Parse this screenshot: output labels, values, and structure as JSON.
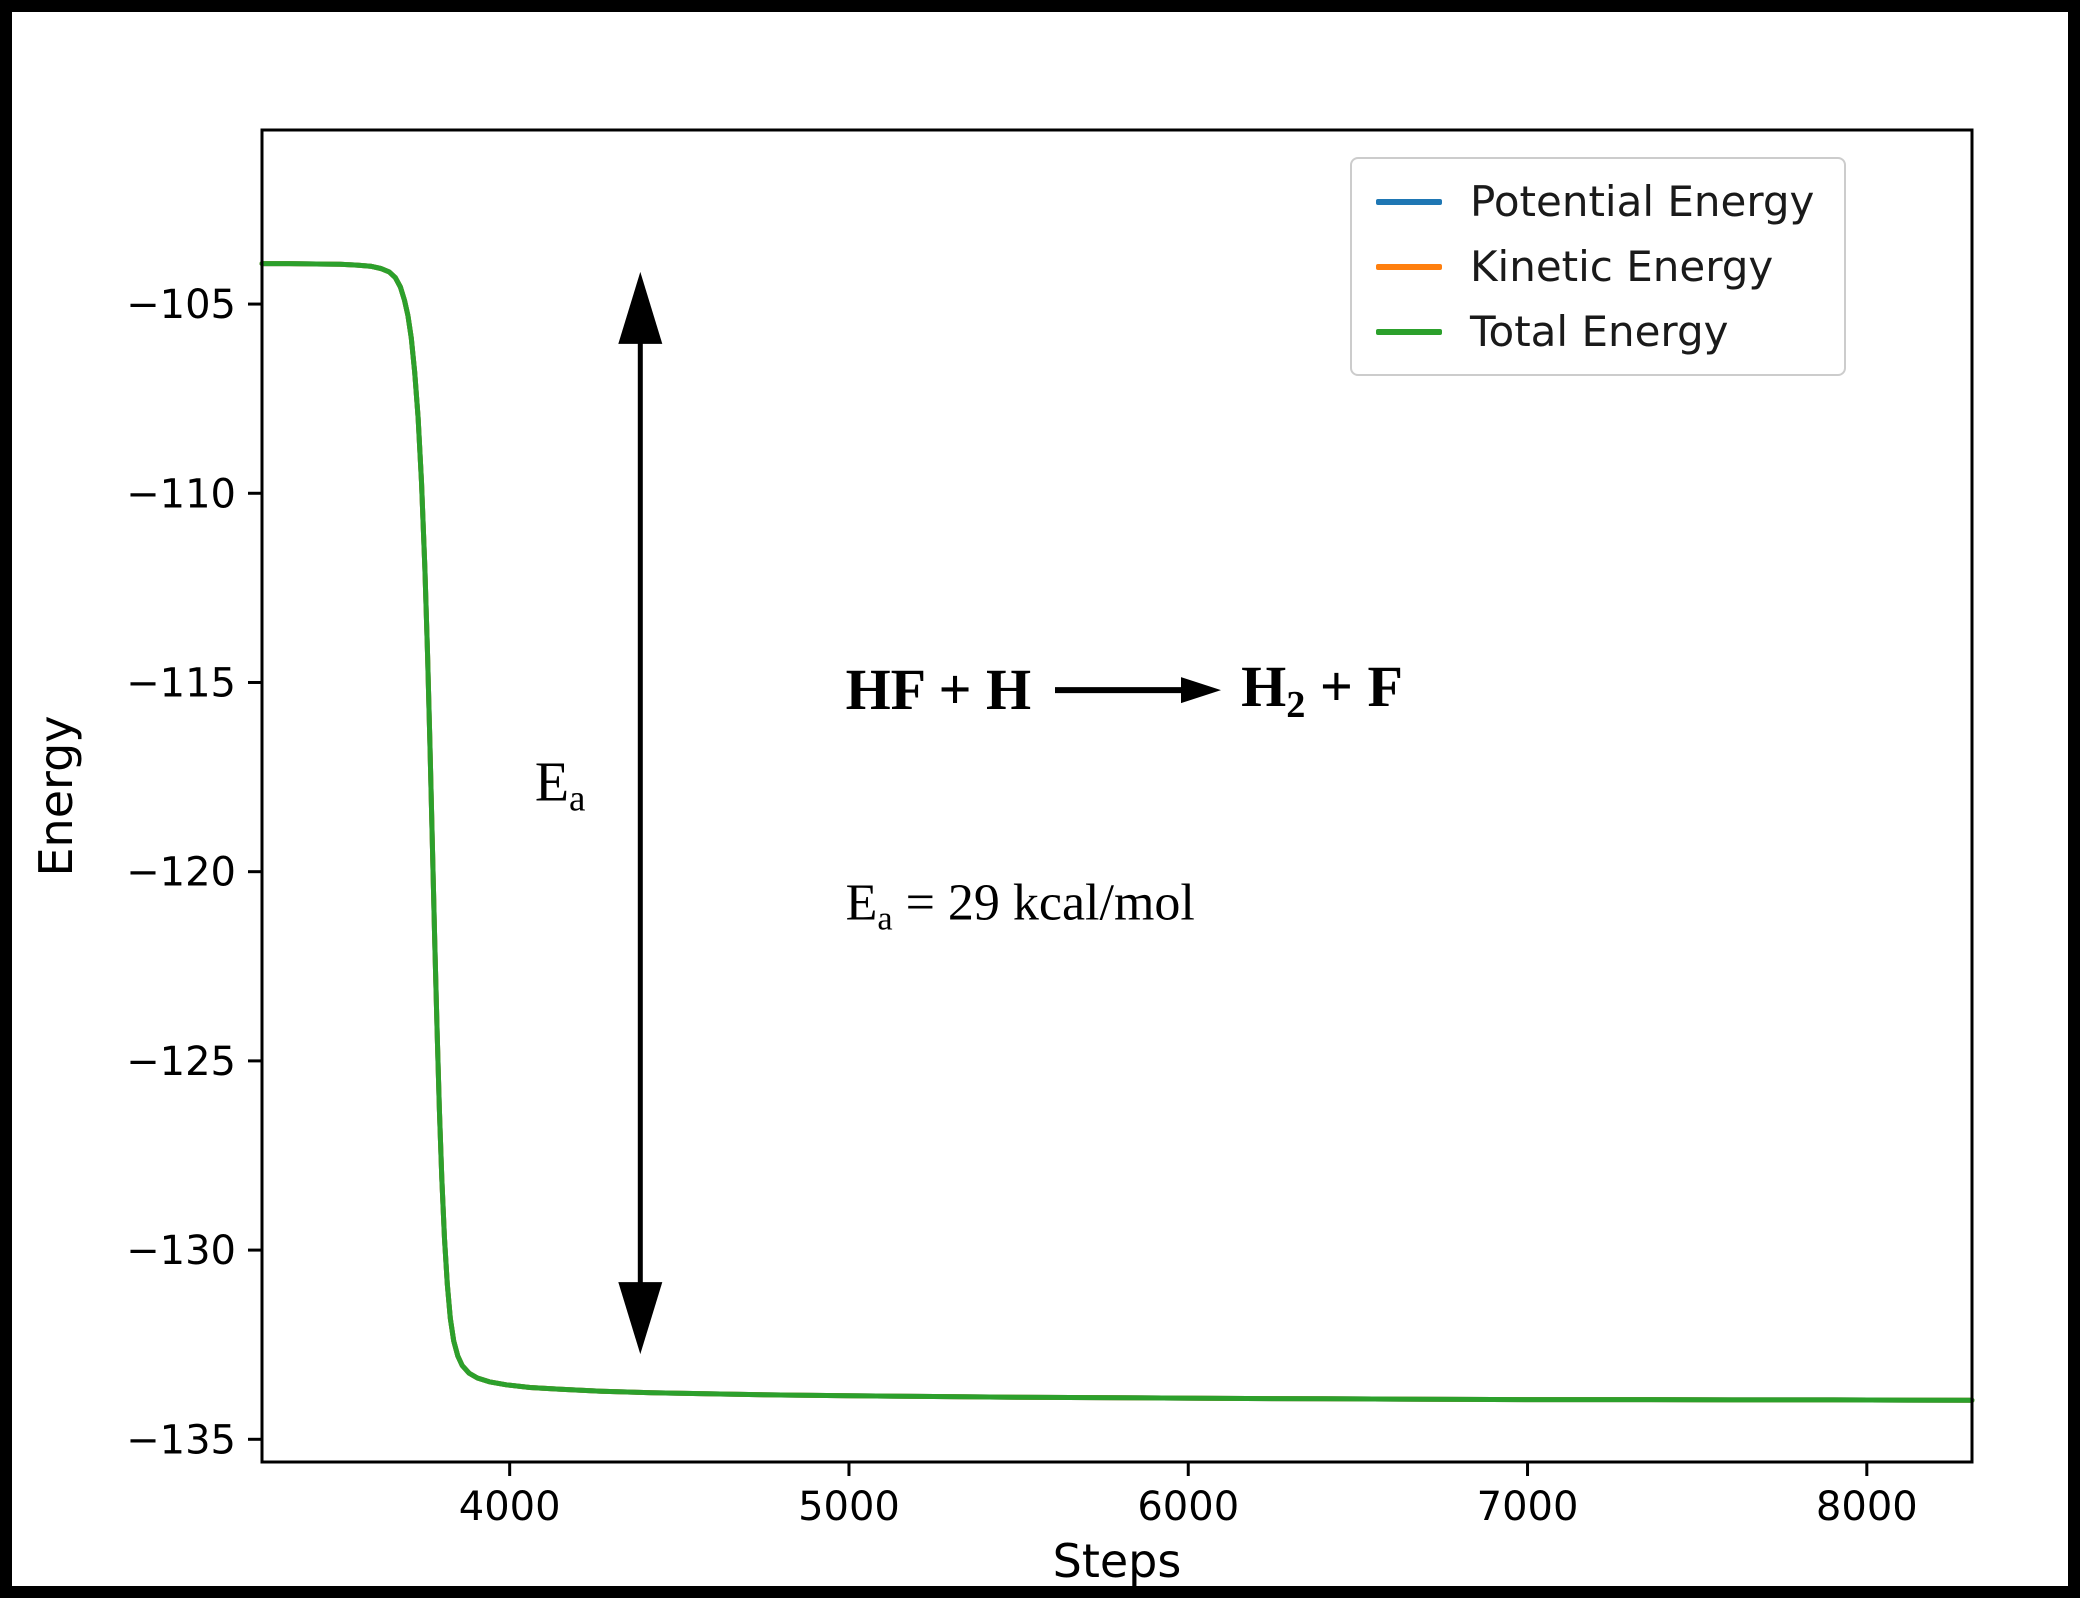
{
  "figure": {
    "xlabel": "Steps",
    "ylabel": "Energy"
  },
  "chart_data": {
    "type": "line",
    "title": "",
    "xlabel": "Steps",
    "ylabel": "Energy",
    "xlim": [
      3270,
      8310
    ],
    "ylim": [
      -135.6,
      -100.4
    ],
    "xticks": [
      4000,
      5000,
      6000,
      7000,
      8000
    ],
    "yticks": [
      -105,
      -110,
      -115,
      -120,
      -125,
      -130,
      -135
    ],
    "grid": false,
    "legend_position": "upper right",
    "overlap_note": "All three curves coincide; green Total Energy line is drawn on top and is the only visible curve.",
    "series": [
      {
        "name": "Potential Energy",
        "color": "#1f77b4"
      },
      {
        "name": "Kinetic Energy",
        "color": "#ff7f0e"
      },
      {
        "name": "Total Energy",
        "color": "#2ca02c"
      }
    ],
    "points": [
      [
        3270,
        -103.93
      ],
      [
        3350,
        -103.93
      ],
      [
        3430,
        -103.94
      ],
      [
        3500,
        -103.95
      ],
      [
        3550,
        -103.97
      ],
      [
        3590,
        -104.0
      ],
      [
        3620,
        -104.06
      ],
      [
        3645,
        -104.15
      ],
      [
        3663,
        -104.3
      ],
      [
        3678,
        -104.55
      ],
      [
        3690,
        -104.9
      ],
      [
        3700,
        -105.3
      ],
      [
        3710,
        -105.9
      ],
      [
        3720,
        -106.8
      ],
      [
        3730,
        -108.0
      ],
      [
        3740,
        -109.7
      ],
      [
        3750,
        -112.0
      ],
      [
        3758,
        -114.3
      ],
      [
        3765,
        -116.6
      ],
      [
        3772,
        -119.2
      ],
      [
        3779,
        -121.8
      ],
      [
        3786,
        -124.2
      ],
      [
        3793,
        -126.3
      ],
      [
        3800,
        -128.1
      ],
      [
        3808,
        -129.7
      ],
      [
        3816,
        -130.9
      ],
      [
        3825,
        -131.8
      ],
      [
        3835,
        -132.4
      ],
      [
        3847,
        -132.8
      ],
      [
        3860,
        -133.05
      ],
      [
        3880,
        -133.25
      ],
      [
        3905,
        -133.38
      ],
      [
        3940,
        -133.48
      ],
      [
        3990,
        -133.56
      ],
      [
        4060,
        -133.63
      ],
      [
        4150,
        -133.68
      ],
      [
        4270,
        -133.73
      ],
      [
        4420,
        -133.77
      ],
      [
        4600,
        -133.8
      ],
      [
        4800,
        -133.83
      ],
      [
        5000,
        -133.85
      ],
      [
        5250,
        -133.87
      ],
      [
        5500,
        -133.89
      ],
      [
        5800,
        -133.9
      ],
      [
        6100,
        -133.92
      ],
      [
        6400,
        -133.93
      ],
      [
        6700,
        -133.94
      ],
      [
        7000,
        -133.95
      ],
      [
        7300,
        -133.95
      ],
      [
        7600,
        -133.96
      ],
      [
        7900,
        -133.96
      ],
      [
        8310,
        -133.97
      ]
    ],
    "annotations": {
      "ea_arrow": {
        "x": 4385,
        "y_top": -104.15,
        "y_bottom": -132.75,
        "style": "double-headed vertical arrow"
      },
      "ea_label": {
        "base": "E",
        "sub": "a",
        "x": 4300,
        "y": -117.7
      },
      "reaction": {
        "lhs": "HF + H",
        "rhs_base": "H",
        "rhs_sub": "2",
        "rhs_tail": " + F",
        "x": 4990,
        "y": -115.2
      },
      "ea_value": {
        "base": "E",
        "sub": "a",
        "rest": " = 29 kcal/mol",
        "x": 4990,
        "y": -120.9
      }
    }
  }
}
